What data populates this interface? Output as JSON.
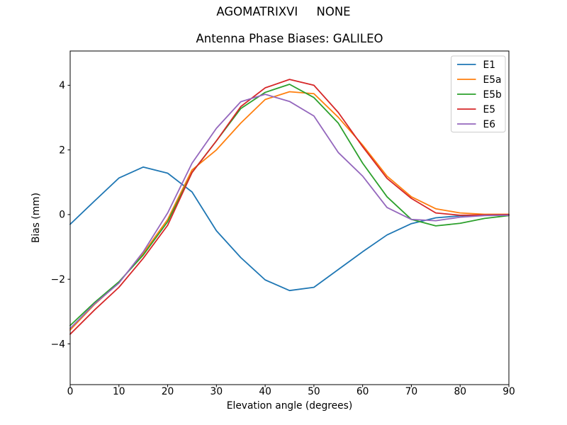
{
  "figure": {
    "suptitle": "AGOMATRIXVI     NONE",
    "title": "Antenna Phase Biases: GALILEO",
    "xlabel": "Elevation angle (degrees)",
    "ylabel": "Bias (mm)"
  },
  "chart_data": {
    "type": "line",
    "suptitle": "AGOMATRIXVI     NONE",
    "title": "Antenna Phase Biases: GALILEO",
    "xlabel": "Elevation angle (degrees)",
    "ylabel": "Bias (mm)",
    "xlim": [
      0,
      90
    ],
    "ylim": [
      -5.26,
      5.06
    ],
    "xticks": [
      0,
      10,
      20,
      30,
      40,
      50,
      60,
      70,
      80,
      90
    ],
    "xticklabels": [
      "0",
      "10",
      "20",
      "30",
      "40",
      "50",
      "60",
      "70",
      "80",
      "90"
    ],
    "yticks": [
      -4,
      -2,
      0,
      2,
      4
    ],
    "yticklabels": [
      "−4",
      "−2",
      "0",
      "2",
      "4"
    ],
    "grid": false,
    "legend_position": "upper right",
    "frame_color": "#000000",
    "x": [
      0,
      5,
      10,
      15,
      20,
      25,
      30,
      35,
      40,
      45,
      50,
      55,
      60,
      65,
      70,
      75,
      80,
      85,
      90
    ],
    "series": [
      {
        "name": "E1",
        "color": "#1f77b4",
        "values": [
          -0.3,
          0.42,
          1.13,
          1.47,
          1.28,
          0.7,
          -0.5,
          -1.33,
          -2.02,
          -2.35,
          -2.25,
          -1.7,
          -1.15,
          -0.63,
          -0.28,
          -0.1,
          -0.04,
          -0.01,
          0.0
        ]
      },
      {
        "name": "E5a",
        "color": "#ff7f0e",
        "values": [
          -3.57,
          -2.78,
          -2.1,
          -1.2,
          -0.15,
          1.38,
          2.0,
          2.83,
          3.56,
          3.8,
          3.74,
          3.01,
          2.15,
          1.19,
          0.55,
          0.18,
          0.05,
          0.01,
          0.01
        ]
      },
      {
        "name": "E5b",
        "color": "#2ca02c",
        "values": [
          -3.43,
          -2.72,
          -2.08,
          -1.25,
          -0.22,
          1.3,
          2.28,
          3.28,
          3.78,
          4.03,
          3.62,
          2.83,
          1.59,
          0.55,
          -0.15,
          -0.35,
          -0.27,
          -0.12,
          -0.03
        ]
      },
      {
        "name": "E5",
        "color": "#d62728",
        "values": [
          -3.7,
          -2.95,
          -2.25,
          -1.35,
          -0.33,
          1.3,
          2.28,
          3.34,
          3.92,
          4.18,
          4.0,
          3.16,
          2.1,
          1.12,
          0.5,
          0.05,
          -0.02,
          -0.01,
          0.0
        ]
      },
      {
        "name": "E6",
        "color": "#9467bd",
        "values": [
          -3.52,
          -2.76,
          -2.12,
          -1.15,
          0.05,
          1.59,
          2.67,
          3.49,
          3.72,
          3.5,
          3.05,
          1.92,
          1.19,
          0.22,
          -0.15,
          -0.19,
          -0.08,
          -0.03,
          -0.02
        ]
      }
    ]
  }
}
